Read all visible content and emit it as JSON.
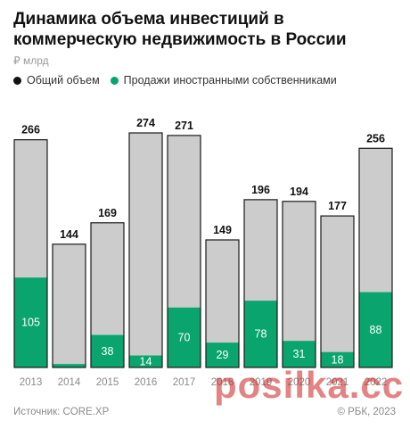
{
  "header": {
    "title": "Динамика объема инвестиций в коммерческую недвижимость в России",
    "unit": "₽ млрд"
  },
  "legend": {
    "total_label": "Общий объем",
    "foreign_label": "Продажи иностранными собственниками"
  },
  "colors": {
    "total_fill": "#cccccc",
    "foreign_fill": "#0aa56e",
    "bar_stroke": "#1a1a1a",
    "total_dot": "#111111"
  },
  "footer": {
    "source": "Источник: CORE.XP",
    "copyright": "© РБК, 2023"
  },
  "watermark": "posilka.cc",
  "chart_data": {
    "type": "bar",
    "categories": [
      "2013",
      "2014",
      "2015",
      "2016",
      "2017",
      "2018",
      "2019",
      "2020",
      "2021",
      "2022"
    ],
    "series": [
      {
        "name": "Общий объем",
        "values": [
          266,
          144,
          169,
          274,
          271,
          149,
          196,
          194,
          177,
          256
        ]
      },
      {
        "name": "Продажи иностранными собственниками",
        "values": [
          105,
          4,
          38,
          14,
          70,
          29,
          78,
          31,
          18,
          88
        ]
      }
    ],
    "foreign_labels_shown": [
      true,
      false,
      true,
      true,
      true,
      true,
      true,
      true,
      true,
      true
    ],
    "ylim": [
      0,
      274
    ],
    "grid": false,
    "legend_position": "top-left"
  }
}
